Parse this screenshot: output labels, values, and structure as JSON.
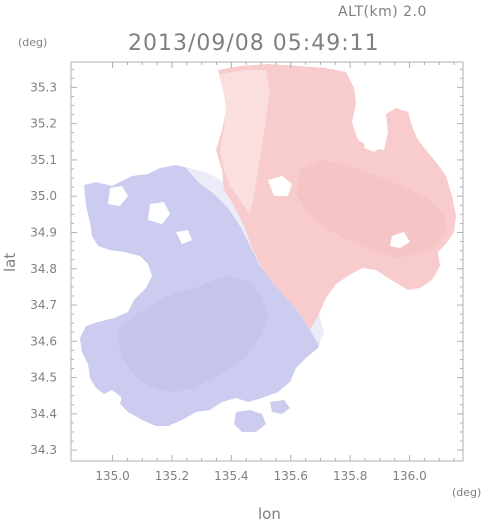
{
  "header": {
    "altitude": "ALT(km)  2.0",
    "timestamp": "2013/09/08 05:49:11",
    "y_unit": "(deg)",
    "x_unit": "(deg)"
  },
  "axes": {
    "xlabel": "lon",
    "ylabel": "lat",
    "x_ticks": [
      "135.0",
      "135.2",
      "135.4",
      "135.6",
      "135.8",
      "136.0"
    ],
    "y_ticks": [
      "35.3",
      "35.2",
      "35.1",
      "35.0",
      "34.9",
      "34.8",
      "34.7",
      "34.6",
      "34.5",
      "34.4",
      "34.3"
    ],
    "xlim": [
      134.86,
      136.18
    ],
    "ylim": [
      34.27,
      35.37
    ]
  },
  "colors": {
    "approaching": "#c9c9ee",
    "approaching_light": "#e2e2f6",
    "receding": "#f7c8c8",
    "receding_light": "#fbe0e0",
    "frame": "#b0b0b0",
    "text": "#808080"
  }
}
